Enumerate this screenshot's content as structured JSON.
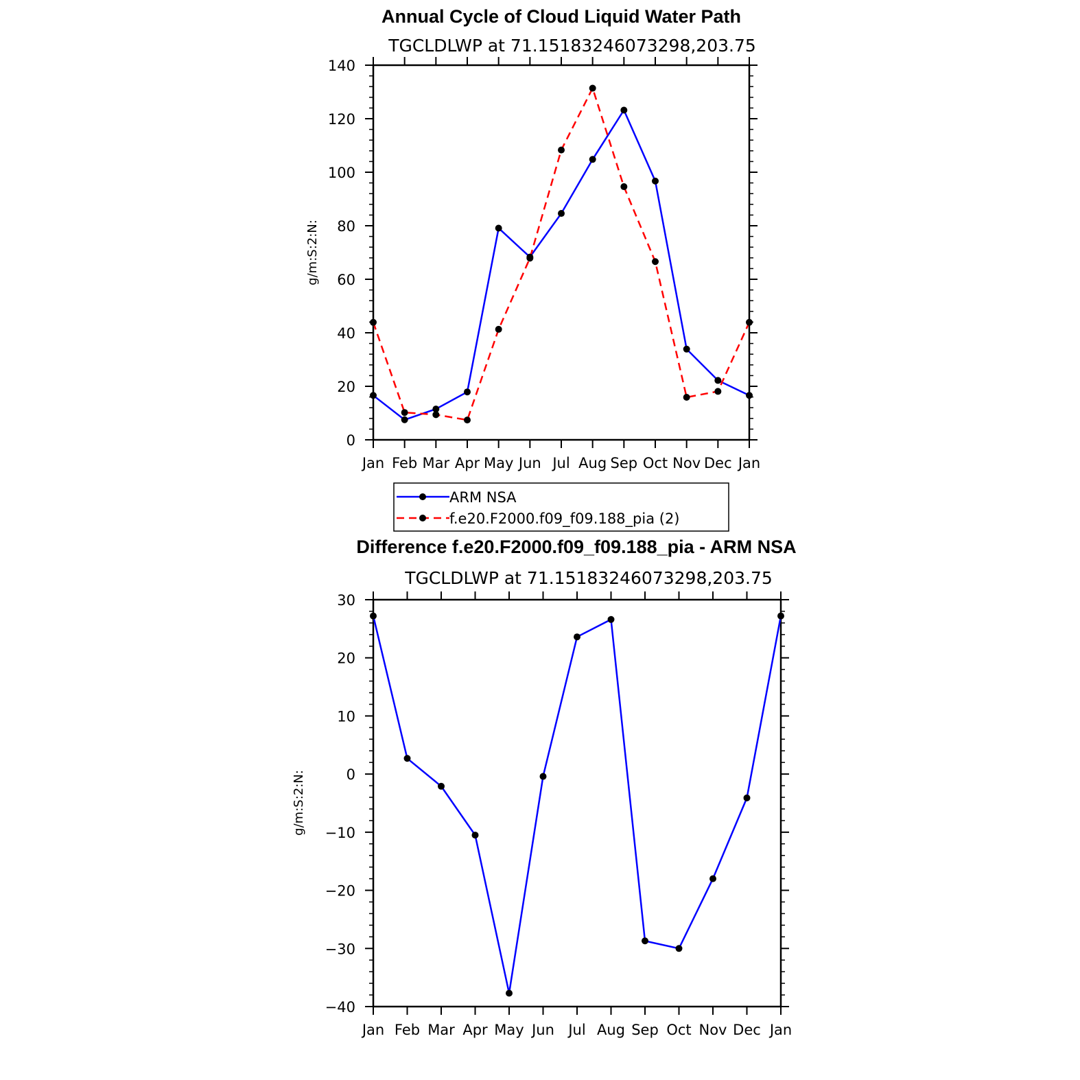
{
  "chart_data": [
    {
      "type": "line",
      "title": "Annual Cycle of Cloud Liquid Water Path",
      "subtitle": "TGCLDLWP  at  71.15183246073298,203.75",
      "ylabel": "g/m:S:2:N:",
      "ylim": [
        0,
        140
      ],
      "yticks": [
        0,
        20,
        40,
        60,
        80,
        100,
        120,
        140
      ],
      "categories": [
        "Jan",
        "Feb",
        "Mar",
        "Apr",
        "May",
        "Jun",
        "Jul",
        "Aug",
        "Sep",
        "Oct",
        "Nov",
        "Dec",
        "Jan"
      ],
      "series": [
        {
          "name": "ARM  NSA",
          "color": "#0000ff",
          "dashed": false,
          "values": [
            16.6,
            7.5,
            11.5,
            17.9,
            79.1,
            68.3,
            84.6,
            104.8,
            123.2,
            96.7,
            33.9,
            22.2,
            16.6
          ]
        },
        {
          "name": "f.e20.F2000.f09_f09.188_pia  (2)",
          "color": "#ff0000",
          "dashed": true,
          "values": [
            43.9,
            10.2,
            9.4,
            7.4,
            41.3,
            67.9,
            108.3,
            131.4,
            94.6,
            66.6,
            15.9,
            18.1,
            43.9
          ]
        }
      ],
      "legend": [
        "ARM  NSA",
        "f.e20.F2000.f09_f09.188_pia  (2)"
      ]
    },
    {
      "type": "line",
      "title": "Difference f.e20.F2000.f09_f09.188_pia - ARM NSA",
      "subtitle": "TGCLDLWP  at  71.15183246073298,203.75",
      "ylabel": "g/m:S:2:N:",
      "ylim": [
        -40,
        30
      ],
      "yticks": [
        -40,
        -30,
        -20,
        -10,
        0,
        10,
        20,
        30
      ],
      "ytick_labels": [
        "−40",
        "−30",
        "−20",
        "−10",
        "0",
        "10",
        "20",
        "30"
      ],
      "categories": [
        "Jan",
        "Feb",
        "Mar",
        "Apr",
        "May",
        "Jun",
        "Jul",
        "Aug",
        "Sep",
        "Oct",
        "Nov",
        "Dec",
        "Jan"
      ],
      "series": [
        {
          "name": "Difference",
          "color": "#0000ff",
          "dashed": false,
          "values": [
            27.2,
            2.7,
            -2.1,
            -10.5,
            -37.7,
            -0.4,
            23.6,
            26.6,
            -28.7,
            -30.0,
            -18.0,
            -4.1,
            27.2
          ]
        }
      ]
    }
  ]
}
